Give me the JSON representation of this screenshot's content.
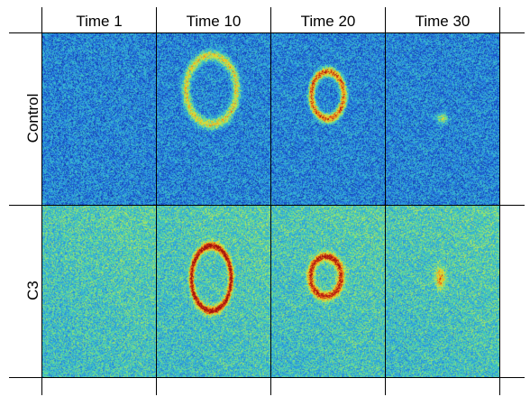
{
  "columns": [
    {
      "label": "Time 1"
    },
    {
      "label": "Time 10"
    },
    {
      "label": "Time 20"
    },
    {
      "label": "Time 30"
    }
  ],
  "rows": [
    {
      "label": "Control"
    },
    {
      "label": "C3"
    }
  ],
  "colormap": [
    "#0a1a8c",
    "#1f5fd6",
    "#2fa8e0",
    "#4fd6a8",
    "#c8e84a",
    "#f5c21e",
    "#e8501a",
    "#a0100e"
  ]
}
